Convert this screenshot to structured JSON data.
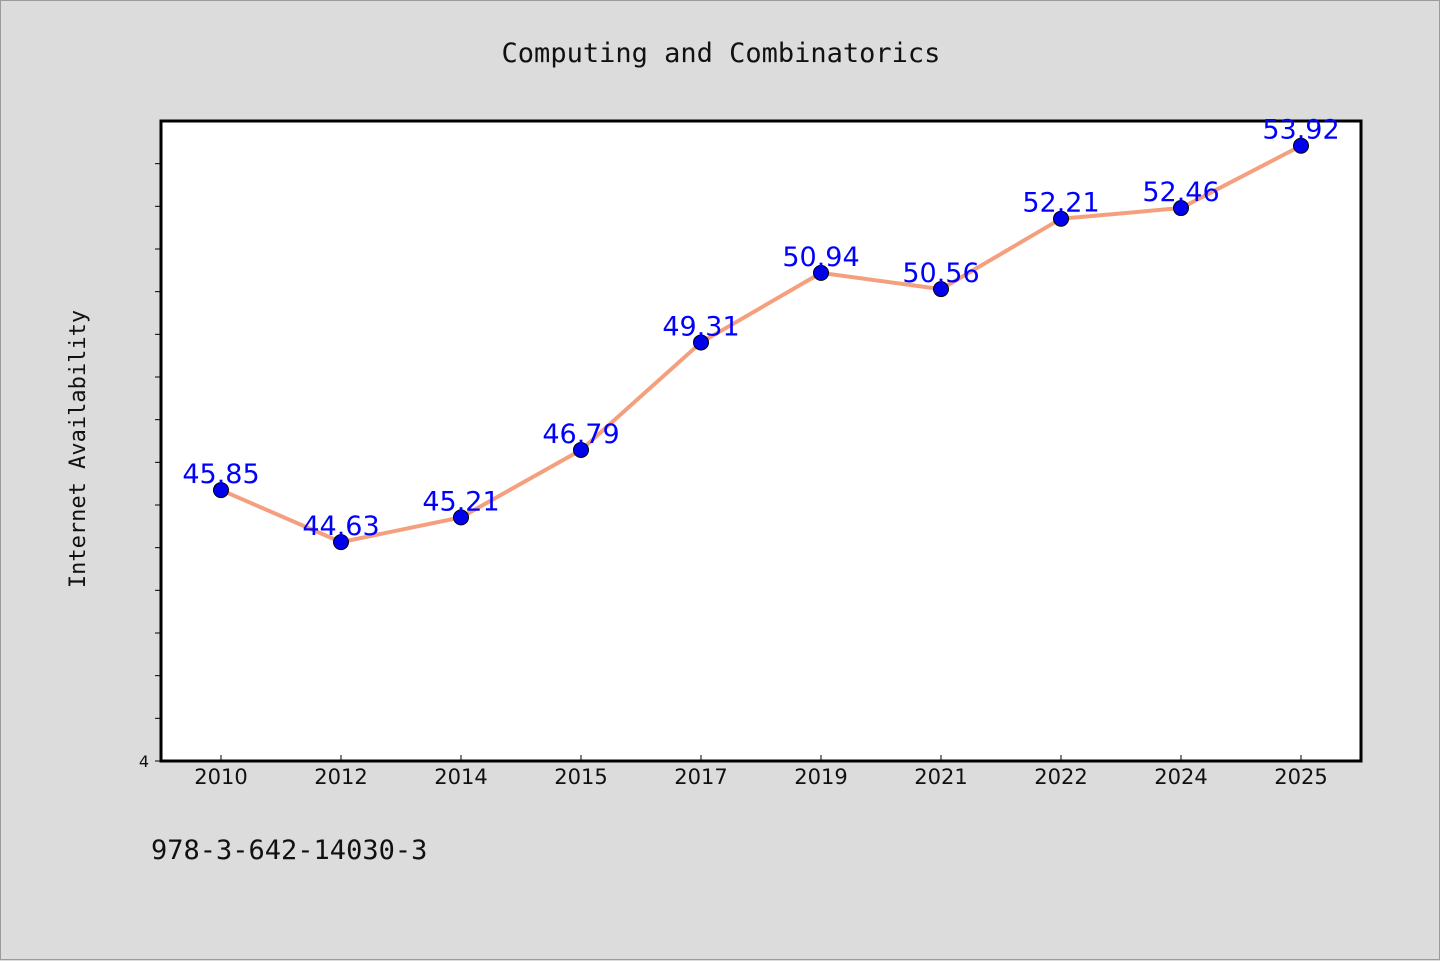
{
  "colors": {
    "background": "#dcdcdc",
    "plot_background": "#ffffff",
    "line": "#f4a07f",
    "marker": "#0000ee",
    "data_label": "#0000ff"
  },
  "footer_code": "978-3-642-14030-3",
  "chart_data": {
    "type": "line",
    "title": "Computing and Combinatorics",
    "xlabel": "",
    "ylabel": "Internet Availability",
    "categories": [
      "2010",
      "2012",
      "2014",
      "2015",
      "2017",
      "2019",
      "2021",
      "2022",
      "2024",
      "2025"
    ],
    "series": [
      {
        "values": [
          45.85,
          44.63,
          45.21,
          46.79,
          49.31,
          50.94,
          50.56,
          52.21,
          52.46,
          53.92
        ]
      }
    ],
    "data_labels": [
      "45.85",
      "44.63",
      "45.21",
      "46.79",
      "49.31",
      "50.94",
      "50.56",
      "52.21",
      "52.46",
      "53.92"
    ],
    "ylim": [
      39.5,
      54.5
    ],
    "y_tick_labels": [
      "4"
    ],
    "grid": false,
    "legend": "none"
  }
}
